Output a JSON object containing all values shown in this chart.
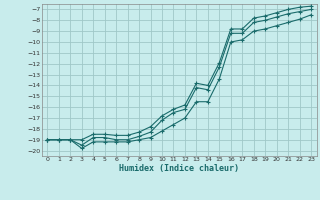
{
  "xlabel": "Humidex (Indice chaleur)",
  "bg_color": "#c8ecec",
  "grid_color": "#a0c8c8",
  "line_color": "#1a6b6b",
  "xlim": [
    -0.5,
    23.5
  ],
  "ylim": [
    -20.5,
    -6.5
  ],
  "xticks": [
    0,
    1,
    2,
    3,
    4,
    5,
    6,
    7,
    8,
    9,
    10,
    11,
    12,
    13,
    14,
    15,
    16,
    17,
    18,
    19,
    20,
    21,
    22,
    23
  ],
  "yticks": [
    -20,
    -19,
    -18,
    -17,
    -16,
    -15,
    -14,
    -13,
    -12,
    -11,
    -10,
    -9,
    -8,
    -7
  ],
  "line1_x": [
    0,
    1,
    2,
    3,
    4,
    5,
    6,
    7,
    8,
    9,
    10,
    11,
    12,
    13,
    14,
    15,
    16,
    17,
    18,
    19,
    20,
    21,
    22,
    23
  ],
  "line1_y": [
    -19.0,
    -19.0,
    -19.0,
    -19.5,
    -18.8,
    -18.8,
    -19.0,
    -19.0,
    -18.7,
    -18.3,
    -17.2,
    -16.5,
    -16.2,
    -14.2,
    -14.4,
    -12.3,
    -9.2,
    -9.2,
    -8.2,
    -8.0,
    -7.7,
    -7.4,
    -7.2,
    -7.0
  ],
  "line2_x": [
    0,
    1,
    2,
    3,
    4,
    5,
    6,
    7,
    8,
    9,
    10,
    11,
    12,
    13,
    14,
    15,
    16,
    17,
    18,
    19,
    20,
    21,
    22,
    23
  ],
  "line2_y": [
    -19.0,
    -19.0,
    -19.0,
    -19.0,
    -18.5,
    -18.5,
    -18.6,
    -18.6,
    -18.3,
    -17.8,
    -16.8,
    -16.2,
    -15.8,
    -13.8,
    -14.0,
    -11.9,
    -8.8,
    -8.8,
    -7.8,
    -7.6,
    -7.3,
    -7.0,
    -6.8,
    -6.7
  ],
  "line3_x": [
    0,
    1,
    2,
    3,
    4,
    5,
    6,
    7,
    8,
    9,
    10,
    11,
    12,
    13,
    14,
    15,
    16,
    17,
    18,
    19,
    20,
    21,
    22,
    23
  ],
  "line3_y": [
    -19.0,
    -19.0,
    -19.0,
    -19.8,
    -19.2,
    -19.2,
    -19.2,
    -19.2,
    -19.0,
    -18.8,
    -18.2,
    -17.6,
    -17.0,
    -15.5,
    -15.5,
    -13.4,
    -10.0,
    -9.8,
    -9.0,
    -8.8,
    -8.5,
    -8.2,
    -7.9,
    -7.5
  ]
}
